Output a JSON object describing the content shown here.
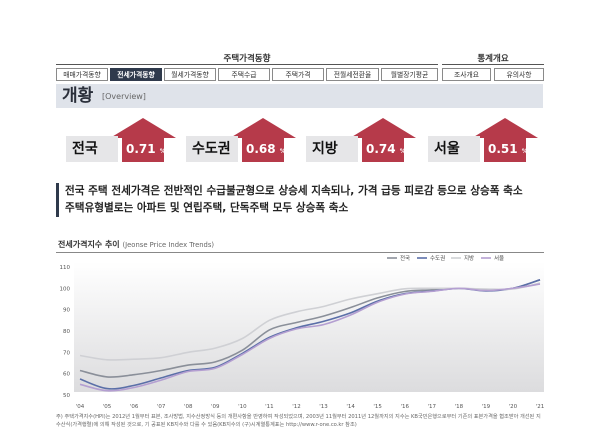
{
  "nav": {
    "group1_title": "주택가격동향",
    "group2_title": "통계개요",
    "tabs": [
      {
        "label": "매매가격동향",
        "active": false
      },
      {
        "label": "전세가격동향",
        "active": true
      },
      {
        "label": "월세가격동향",
        "active": false
      },
      {
        "label": "주택수급",
        "active": false
      },
      {
        "label": "주택가격",
        "active": false
      },
      {
        "label": "전월세전환율",
        "active": false
      },
      {
        "label": "월별장기평균",
        "active": false
      },
      {
        "label": "조사개요",
        "active": false
      },
      {
        "label": "유의사항",
        "active": false
      }
    ]
  },
  "overview": {
    "title": "개황",
    "subtitle": "[Overview]"
  },
  "regions": [
    {
      "name": "전국",
      "value": "0.71",
      "unit": "%"
    },
    {
      "name": "수도권",
      "value": "0.68",
      "unit": "%"
    },
    {
      "name": "지방",
      "value": "0.74",
      "unit": "%"
    },
    {
      "name": "서울",
      "value": "0.51",
      "unit": "%"
    }
  ],
  "colors": {
    "arrow": "#b63a4a",
    "nav_active": "#2f3a4c"
  },
  "headline": [
    "전국 주택 전세가격은 전반적인 수급불균형으로 상승세 지속되나, 가격 급등 피로감 등으로 상승폭 축소",
    "주택유형별로는 아파트 및 연립주택, 단독주택 모두 상승폭 축소"
  ],
  "chart_title": "전세가격지수 추이",
  "chart_title_en": "(Jeonse Price Index Trends)",
  "footnote": "주) 주택가격지수(HPI)는 2012년 1월부터 표본, 조사방법, 지수산정방식 등의 개편사항을 반영하여 작성되었으며, 2003년 11월부터 2011년 12월까지의 지수는 KB국민은행으로부터 기존의 표본가격을 협조받아 개선된 지수산식(가격행렬)에 의해 작성된 것으로, 기 공표된 KB지수와 다를 수 있음(KB지수의 (구)시계열통계표는 http://www.r-one.co.kr 참조)",
  "chart_data": {
    "type": "line",
    "title": "전세가격지수 추이",
    "xlabel": "",
    "ylabel": "",
    "x": [
      2004,
      2005,
      2006,
      2007,
      2008,
      2009,
      2010,
      2011,
      2012,
      2013,
      2014,
      2015,
      2016,
      2017,
      2018,
      2019,
      2020,
      2021
    ],
    "x_tick_labels": [
      "'04",
      "'05",
      "'06",
      "'07",
      "'08",
      "'09",
      "'10",
      "'11",
      "'12",
      "'13",
      "'14",
      "'15",
      "'16",
      "'17",
      "'18",
      "'19",
      "'20",
      "'21"
    ],
    "ylim": [
      50,
      110
    ],
    "yticks": [
      50,
      60,
      70,
      80,
      90,
      100,
      110
    ],
    "legend_position": "top-right",
    "grid": false,
    "series": [
      {
        "name": "전국",
        "color": "#8a8f99",
        "values": [
          61.5,
          58.5,
          59.5,
          61.5,
          64.0,
          65.5,
          71.0,
          80.5,
          84.0,
          87.0,
          91.0,
          95.5,
          98.5,
          99.3,
          100.0,
          99.3,
          100.0,
          104.0
        ]
      },
      {
        "name": "수도권",
        "color": "#5b6fa8",
        "values": [
          57.5,
          53.0,
          54.5,
          58.0,
          61.5,
          63.0,
          69.5,
          77.0,
          81.5,
          84.5,
          88.5,
          94.0,
          97.5,
          98.7,
          100.0,
          98.8,
          100.0,
          104.0
        ]
      },
      {
        "name": "지방",
        "color": "#cfd0d4",
        "values": [
          68.5,
          66.5,
          66.8,
          67.5,
          70.0,
          72.0,
          76.5,
          85.0,
          89.0,
          91.5,
          95.0,
          97.5,
          99.8,
          100.0,
          100.0,
          99.7,
          99.7,
          102.5
        ]
      },
      {
        "name": "서울",
        "color": "#b49fd1",
        "values": [
          55.0,
          52.0,
          53.5,
          57.0,
          61.0,
          62.5,
          69.0,
          76.5,
          81.0,
          83.0,
          87.5,
          93.5,
          97.3,
          98.6,
          100.0,
          99.0,
          100.0,
          102.0
        ]
      }
    ]
  }
}
